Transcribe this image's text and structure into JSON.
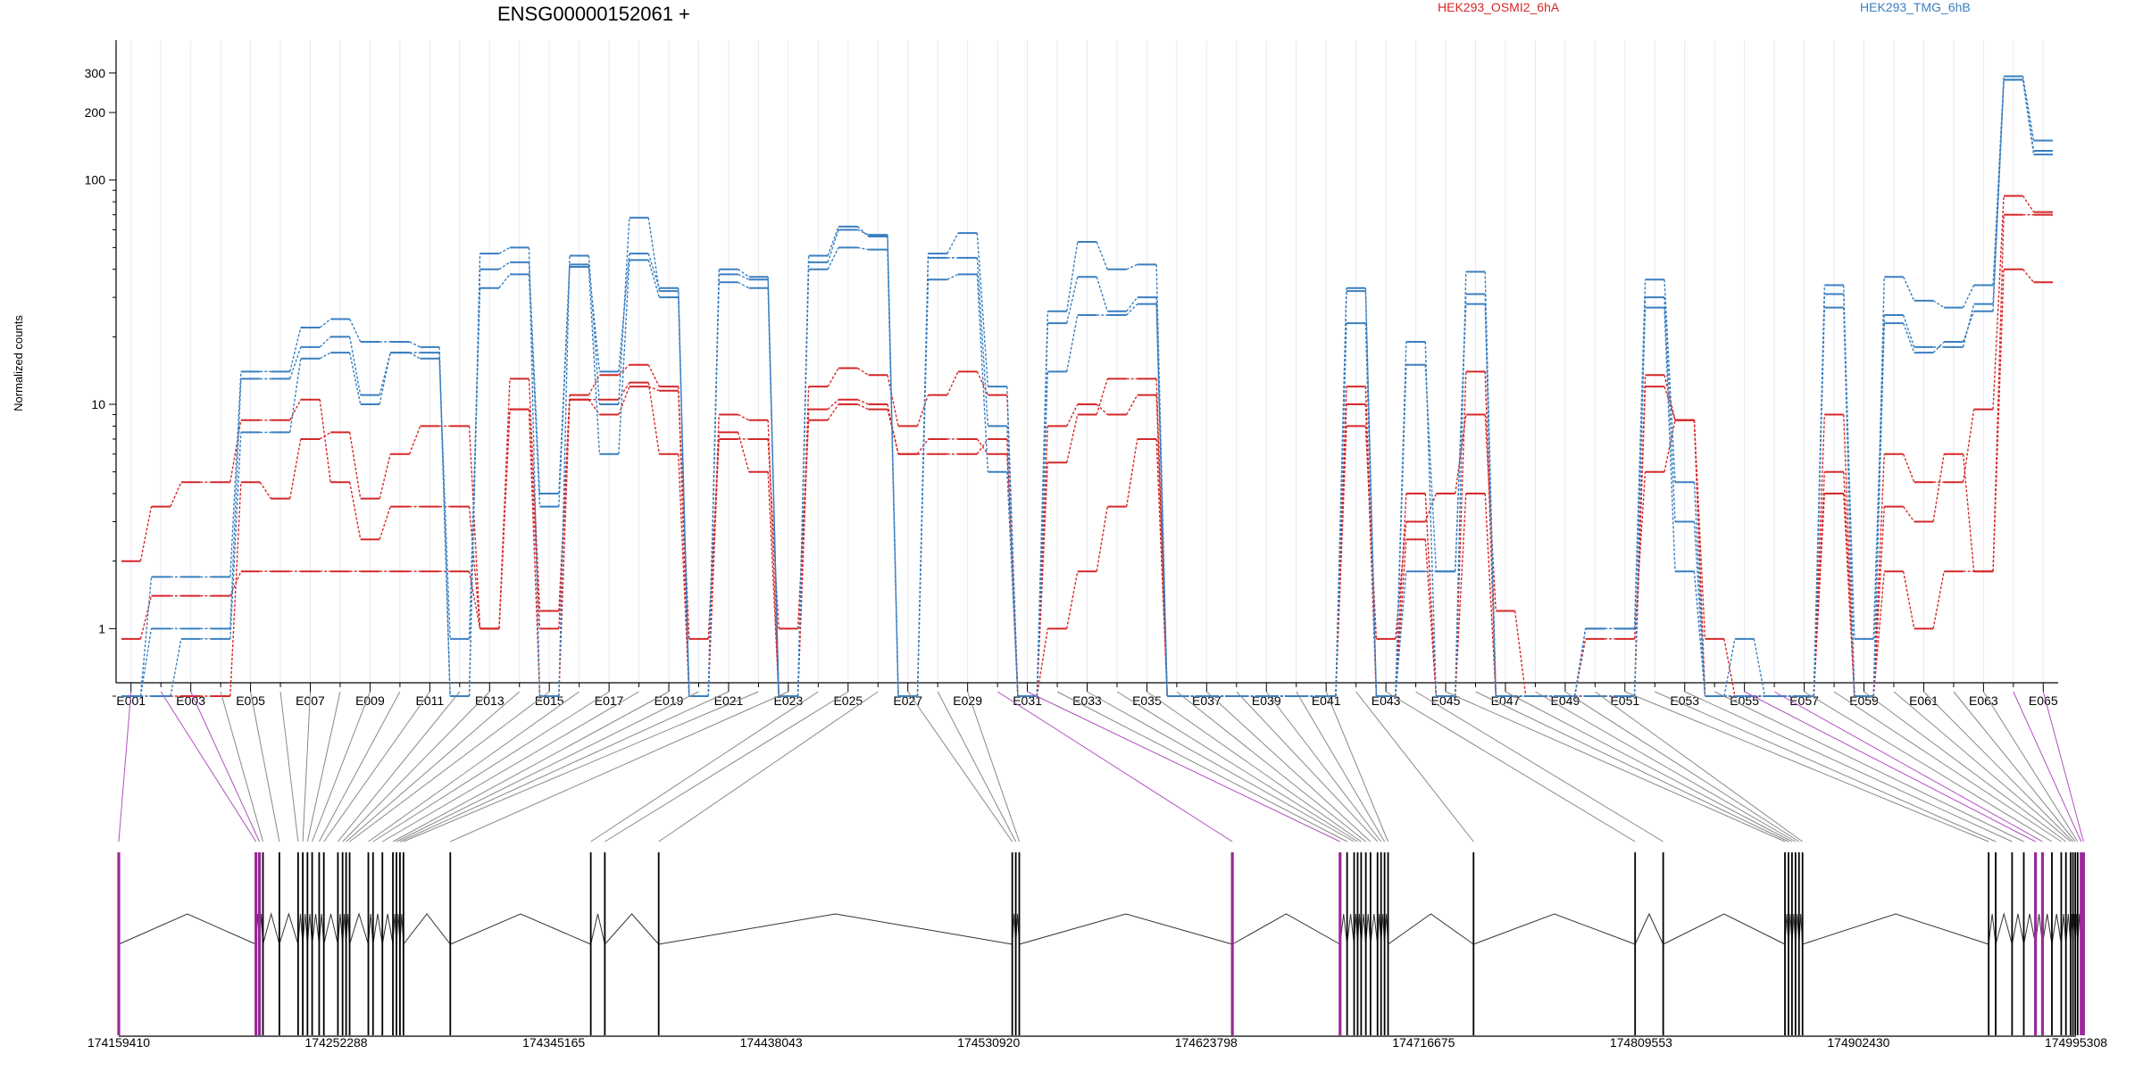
{
  "chart_data": {
    "type": "line",
    "title": "ENSG00000152061 +",
    "ylabel": "Normalized counts",
    "yscale": "log",
    "ylim": [
      0.5,
      350
    ],
    "yticks": [
      1,
      10,
      100,
      200,
      300
    ],
    "ytick_labels": [
      "1",
      "10",
      "100",
      "200",
      "300"
    ],
    "legend": [
      {
        "name": "HEK293_OSMI2_6hA",
        "color": "#d62728"
      },
      {
        "name": "HEK293_TMG_6hB",
        "color": "#3a7fc0"
      }
    ],
    "exon_tick_labels": [
      "E001",
      "E003",
      "E005",
      "E007",
      "E009",
      "E011",
      "E013",
      "E015",
      "E017",
      "E019",
      "E021",
      "E023",
      "E025",
      "E027",
      "E029",
      "E031",
      "E033",
      "E035",
      "E037",
      "E039",
      "E041",
      "E043",
      "E045",
      "E047",
      "E049",
      "E051",
      "E053",
      "E055",
      "E057",
      "E059",
      "E061",
      "E063",
      "E065"
    ],
    "exon_count": 65,
    "series": [
      {
        "name": "HEK293_OSMI2_6hA",
        "color": "#d62728",
        "values": [
          0.9,
          1.4,
          1.4,
          1.4,
          1.8,
          1.8,
          1.8,
          1.8,
          1.8,
          1.8,
          1.8,
          1.8,
          1.0,
          9.5,
          1.0,
          10.5,
          9.0,
          12.0,
          11.5,
          0.9,
          7.0,
          7.0,
          1.0,
          8.5,
          10.0,
          9.5,
          6.0,
          6.0,
          6.0,
          7.0,
          0.5,
          1.0,
          1.8,
          3.5,
          7.0,
          0.5,
          0.5,
          0.5,
          0.5,
          0.5,
          0.5,
          8.0,
          0.9,
          3.0,
          4.0,
          9.0,
          1.2,
          0.5,
          0.5,
          0.9,
          0.9,
          5.0,
          8.5,
          0.9,
          0.5,
          0.5,
          0.5,
          5.0,
          0.5,
          1.8,
          1.0,
          1.8,
          1.8,
          40.0,
          35.0
        ]
      },
      {
        "name": "HEK293_OSMI2_6hA",
        "color": "#d62728",
        "values": [
          2.0,
          3.5,
          4.5,
          4.5,
          8.5,
          8.5,
          10.5,
          4.5,
          2.5,
          3.5,
          3.5,
          3.5,
          1.0,
          13.0,
          1.2,
          11.0,
          13.5,
          15.0,
          12.0,
          0.5,
          9.0,
          8.5,
          0.5,
          12.0,
          14.5,
          13.5,
          8.0,
          11.0,
          14.0,
          11.0,
          0.5,
          5.5,
          9.0,
          13.0,
          13.0,
          0.5,
          0.5,
          0.5,
          0.5,
          0.5,
          0.5,
          12.0,
          0.5,
          4.0,
          0.5,
          14.0,
          0.5,
          0.5,
          0.5,
          0.5,
          0.5,
          13.5,
          8.5,
          0.5,
          0.5,
          0.5,
          0.5,
          9.0,
          0.5,
          6.0,
          4.5,
          4.5,
          9.5,
          85.0,
          72.0
        ]
      },
      {
        "name": "HEK293_OSMI2_6hA",
        "color": "#d62728",
        "values": [
          0.5,
          0.5,
          0.5,
          0.5,
          4.5,
          3.8,
          7.0,
          7.5,
          3.8,
          6.0,
          8.0,
          8.0,
          1.0,
          9.5,
          0.5,
          10.5,
          10.5,
          12.5,
          6.0,
          0.5,
          7.5,
          5.0,
          0.5,
          9.5,
          10.5,
          10.0,
          6.0,
          7.0,
          7.0,
          6.0,
          0.5,
          8.0,
          10.0,
          9.0,
          11.0,
          0.5,
          0.5,
          0.5,
          0.5,
          0.5,
          0.5,
          10.0,
          0.5,
          2.5,
          0.5,
          4.0,
          0.5,
          0.5,
          0.5,
          0.5,
          0.5,
          12.0,
          8.5,
          0.5,
          0.5,
          0.5,
          0.5,
          4.0,
          0.5,
          3.5,
          3.0,
          6.0,
          1.8,
          70.0,
          70.0
        ]
      },
      {
        "name": "HEK293_TMG_6hB",
        "color": "#3a7fc0",
        "values": [
          0.5,
          1.7,
          1.7,
          1.7,
          14.0,
          14.0,
          22.0,
          24.0,
          19.0,
          19.0,
          18.0,
          0.5,
          47.0,
          50.0,
          0.5,
          46.0,
          10.0,
          68.0,
          32.0,
          0.5,
          40.0,
          37.0,
          0.5,
          46.0,
          62.0,
          56.0,
          0.5,
          47.0,
          58.0,
          12.0,
          0.5,
          26.0,
          53.0,
          40.0,
          42.0,
          0.5,
          0.5,
          0.5,
          0.5,
          0.5,
          0.5,
          33.0,
          0.5,
          19.0,
          0.5,
          39.0,
          0.5,
          0.5,
          0.5,
          1.0,
          1.0,
          36.0,
          4.5,
          0.5,
          0.9,
          0.5,
          0.5,
          34.0,
          0.5,
          37.0,
          29.0,
          27.0,
          34.0,
          290.0,
          150.0
        ]
      },
      {
        "name": "HEK293_TMG_6hB",
        "color": "#3a7fc0",
        "values": [
          0.5,
          1.0,
          1.0,
          1.0,
          13.0,
          13.0,
          18.0,
          20.0,
          11.0,
          17.0,
          17.0,
          0.5,
          40.0,
          43.0,
          4.0,
          42.0,
          14.0,
          47.0,
          33.0,
          0.5,
          38.0,
          36.0,
          0.5,
          43.0,
          60.0,
          57.0,
          0.5,
          45.0,
          45.0,
          8.0,
          0.5,
          23.0,
          37.0,
          26.0,
          30.0,
          0.5,
          0.5,
          0.5,
          0.5,
          0.5,
          0.5,
          23.0,
          0.5,
          15.0,
          1.8,
          31.0,
          0.5,
          0.5,
          0.5,
          0.5,
          0.5,
          30.0,
          3.0,
          0.5,
          0.5,
          0.5,
          0.5,
          31.0,
          0.9,
          25.0,
          18.0,
          18.0,
          28.0,
          280.0,
          135.0
        ]
      },
      {
        "name": "HEK293_TMG_6hB",
        "color": "#3a7fc0",
        "values": [
          0.5,
          0.5,
          0.9,
          0.9,
          7.5,
          7.5,
          16.0,
          17.0,
          10.0,
          17.0,
          16.0,
          0.9,
          33.0,
          38.0,
          3.5,
          41.0,
          6.0,
          44.0,
          30.0,
          0.5,
          35.0,
          33.0,
          0.5,
          40.0,
          50.0,
          49.0,
          0.5,
          36.0,
          38.0,
          5.0,
          0.5,
          14.0,
          25.0,
          25.0,
          28.0,
          0.5,
          0.5,
          0.5,
          0.5,
          0.5,
          0.5,
          32.0,
          0.5,
          1.8,
          1.8,
          28.0,
          0.5,
          0.5,
          0.5,
          1.0,
          1.0,
          27.0,
          1.8,
          0.5,
          0.5,
          0.5,
          0.5,
          27.0,
          0.5,
          23.0,
          17.0,
          19.0,
          26.0,
          280.0,
          130.0
        ]
      }
    ],
    "genomic_tick_labels": [
      "174159410",
      "174252288",
      "174345165",
      "174438043",
      "174530920",
      "174623798",
      "174716675",
      "174809553",
      "174902430",
      "174995308"
    ],
    "genomic_range": [
      174159410,
      174995308
    ],
    "exon_starts": [
      174159410,
      174218000,
      174219500,
      174221000,
      174228000,
      174236000,
      174238000,
      174240000,
      174242000,
      174245000,
      174247000,
      174253000,
      174255000,
      174256500,
      174258000,
      174266000,
      174268000,
      174272000,
      174276500,
      174278000,
      174279500,
      174281000,
      174301000,
      174361000,
      174367000,
      174390000,
      174541000,
      174542500,
      174544000,
      174635000,
      174681000,
      174684000,
      174687000,
      174688500,
      174690000,
      174692000,
      174694000,
      174697000,
      174698500,
      174700000,
      174701500,
      174738000,
      174807000,
      174819000,
      174871000,
      174872500,
      174874000,
      174875500,
      174877000,
      174878500,
      174958000,
      174961000,
      174968000,
      174973000,
      174978000,
      174981000,
      174985000,
      174989000,
      174991000,
      174993000,
      174994000,
      174995000,
      174996000,
      174997500,
      174998500
    ],
    "highlighted_exons": [
      1,
      2,
      3,
      30,
      31,
      55,
      56,
      64,
      65
    ],
    "highlight_color": "#9a2a9a"
  }
}
